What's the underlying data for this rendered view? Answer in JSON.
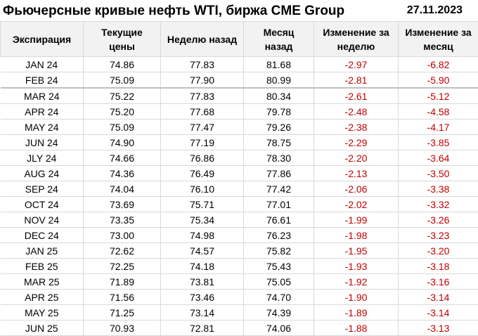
{
  "header": {
    "title": "Фьючерсные кривые нефть WTI, биржа CME Group",
    "date": "27.11.2023"
  },
  "table": {
    "columns": [
      "Экспирация",
      "Текущие цены",
      "Неделю назад",
      "Месяц назад",
      "Изменение за неделю",
      "Изменение за месяц"
    ],
    "rows": [
      [
        "JAN 24",
        "74.86",
        "77.83",
        "81.68",
        "-2.97",
        "-6.82"
      ],
      [
        "FEB 24",
        "75.09",
        "77.90",
        "80.99",
        "-2.81",
        "-5.90"
      ],
      [
        "MAR 24",
        "75.22",
        "77.83",
        "80.34",
        "-2.61",
        "-5.12"
      ],
      [
        "APR 24",
        "75.20",
        "77.68",
        "79.78",
        "-2.48",
        "-4.58"
      ],
      [
        "MAY 24",
        "75.09",
        "77.47",
        "79.26",
        "-2.38",
        "-4.17"
      ],
      [
        "JUN 24",
        "74.90",
        "77.19",
        "78.75",
        "-2.29",
        "-3.85"
      ],
      [
        "JLY 24",
        "74.66",
        "76.86",
        "78.30",
        "-2.20",
        "-3.64"
      ],
      [
        "AUG 24",
        "74.36",
        "76.49",
        "77.86",
        "-2.13",
        "-3.50"
      ],
      [
        "SEP 24",
        "74.04",
        "76.10",
        "77.42",
        "-2.06",
        "-3.38"
      ],
      [
        "OCT 24",
        "73.69",
        "75.71",
        "77.01",
        "-2.02",
        "-3.32"
      ],
      [
        "NOV 24",
        "73.35",
        "75.34",
        "76.61",
        "-1.99",
        "-3.26"
      ],
      [
        "DEC 24",
        "73.00",
        "74.98",
        "76.23",
        "-1.98",
        "-3.23"
      ],
      [
        "JAN 25",
        "72.62",
        "74.57",
        "75.82",
        "-1.95",
        "-3.20"
      ],
      [
        "FEB 25",
        "72.25",
        "74.18",
        "75.43",
        "-1.93",
        "-3.18"
      ],
      [
        "MAR 25",
        "71.89",
        "73.81",
        "75.05",
        "-1.92",
        "-3.16"
      ],
      [
        "APR 25",
        "71.56",
        "73.46",
        "74.70",
        "-1.90",
        "-3.14"
      ],
      [
        "MAY 25",
        "71.25",
        "73.14",
        "74.39",
        "-1.89",
        "-3.14"
      ],
      [
        "JUN 25",
        "70.93",
        "72.81",
        "74.06",
        "-1.88",
        "-3.13"
      ]
    ]
  }
}
